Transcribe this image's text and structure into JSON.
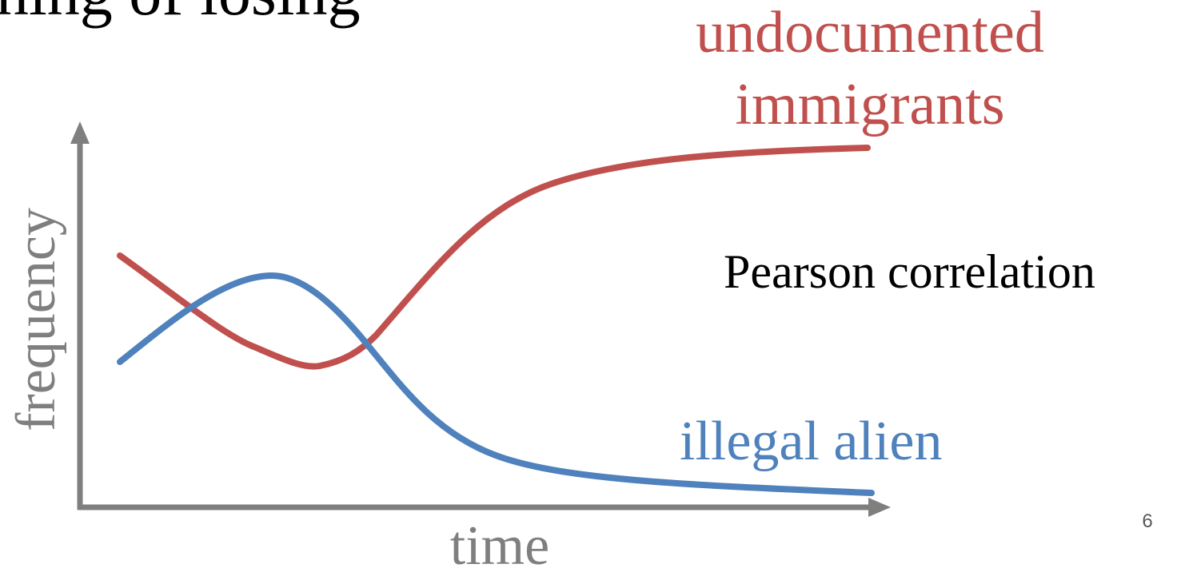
{
  "header": {
    "title": "ning of losing"
  },
  "diagram": {
    "y_axis_label": "frequency",
    "x_axis_label": "time",
    "series_top": {
      "line1": "undocumented",
      "line2": "immigrants"
    },
    "series_bottom": "illegal alien",
    "note": "Pearson correlation"
  },
  "footer": {
    "page_number": "6"
  }
}
